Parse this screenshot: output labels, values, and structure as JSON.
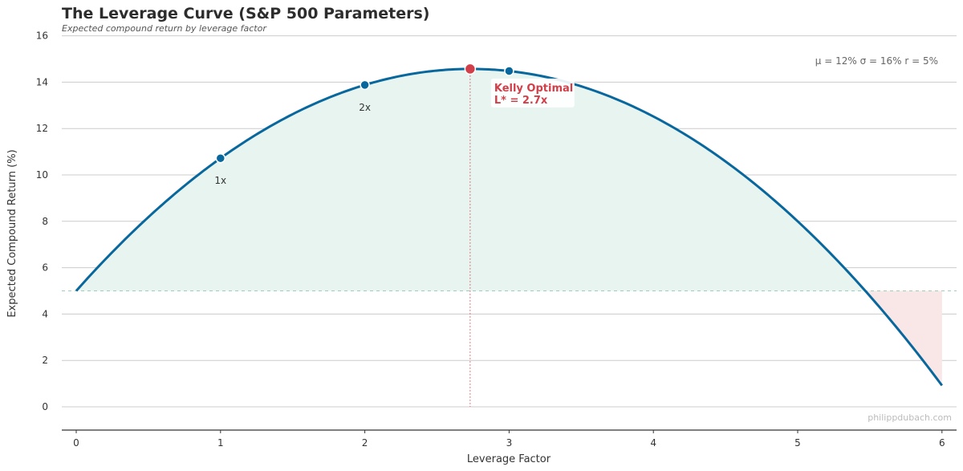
{
  "chart_data": {
    "type": "line",
    "title": "The Leverage Curve (S&P 500 Parameters)",
    "subtitle": "Expected compound return by leverage factor",
    "xlabel": "Leverage Factor",
    "ylabel": "Expected Compound Return (%)",
    "xlim": [
      -0.1,
      6.1
    ],
    "ylim": [
      -1,
      16
    ],
    "x_ticks": [
      "0",
      "1",
      "2",
      "3",
      "4",
      "5",
      "6"
    ],
    "y_ticks": [
      "0",
      "2",
      "4",
      "6",
      "8",
      "10",
      "12",
      "14",
      "16"
    ],
    "grid": "horizontal",
    "parameters": {
      "mu": 12,
      "sigma": 16,
      "r": 5
    },
    "parameter_text": "μ = 12%   σ = 16%   r = 5%",
    "series": [
      {
        "x": [
          0,
          0.5,
          1,
          1.5,
          2,
          2.5,
          2.73,
          3,
          3.5,
          4,
          4.5,
          5,
          5.5,
          6
        ],
        "y": [
          5.0,
          8.18,
          10.72,
          12.62,
          13.88,
          14.5,
          14.57,
          14.48,
          13.82,
          12.52,
          10.58,
          8.0,
          4.78,
          0.92
        ]
      }
    ],
    "risk_free_rate": 5,
    "highlight_points": [
      {
        "x": 1,
        "y": 10.72,
        "label": "1x"
      },
      {
        "x": 2,
        "y": 13.88,
        "label": "2x"
      },
      {
        "x": 3,
        "y": 14.48,
        "label": ""
      }
    ],
    "kelly_point": {
      "x": 2.73,
      "y": 14.57,
      "label_line1": "Kelly Optimal",
      "label_line2": "L* = 2.7x"
    },
    "watermark": "philippdubach.com",
    "colors": {
      "curve": "#08679c",
      "kelly": "#d1404a",
      "fill_positive": "#e8f4f0",
      "fill_negative": "#f9e6e6",
      "grid": "#cccccc"
    }
  }
}
